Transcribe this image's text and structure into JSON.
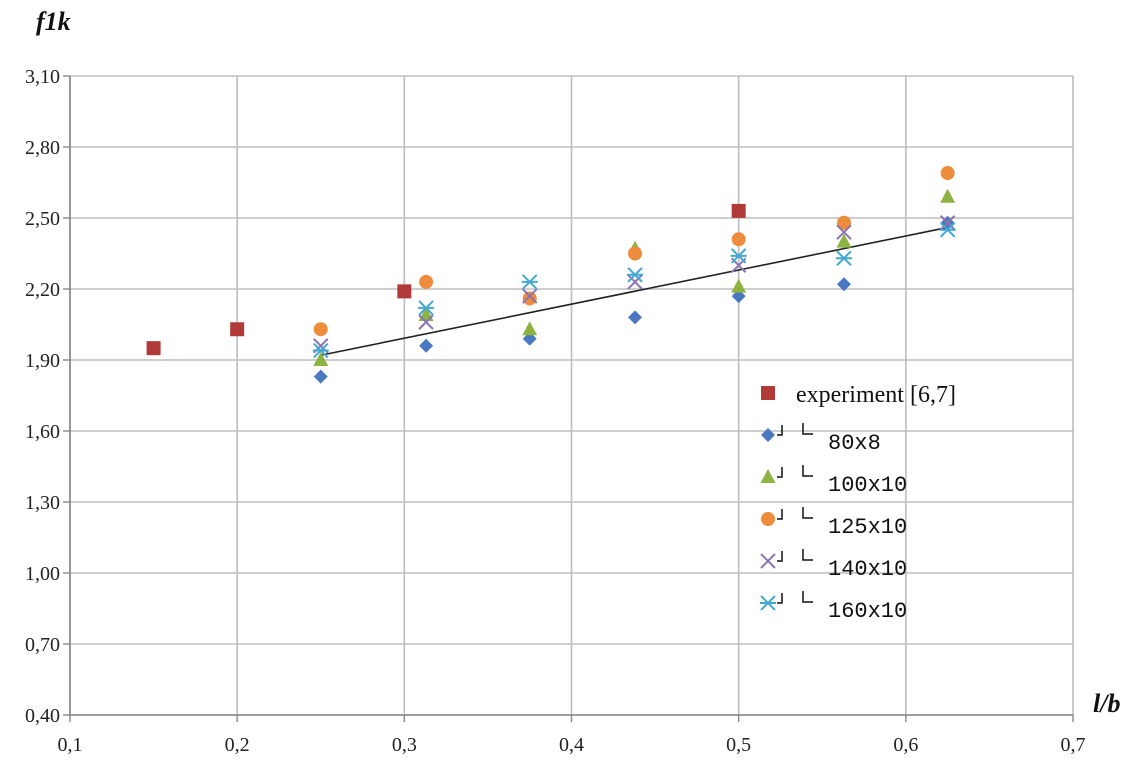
{
  "chart_data": {
    "type": "scatter",
    "ylabel": "f1k",
    "xlabel": "l/b",
    "xlim": [
      0.1,
      0.7
    ],
    "ylim": [
      0.4,
      3.1
    ],
    "x_ticks": [
      "0,1",
      "0,2",
      "0,3",
      "0,4",
      "0,5",
      "0,6",
      "0,7"
    ],
    "y_ticks": [
      "0,40",
      "0,70",
      "1,00",
      "1,30",
      "1,60",
      "1,90",
      "2,20",
      "2,50",
      "2,80",
      "3,10"
    ],
    "grid": true,
    "legend_position": "lower-right",
    "series": [
      {
        "name": "experiment [6,7]",
        "marker": "square",
        "color": "#b03a37",
        "points": [
          [
            0.15,
            1.95
          ],
          [
            0.2,
            2.03
          ],
          [
            0.3,
            2.19
          ],
          [
            0.5,
            2.53
          ]
        ]
      },
      {
        "name": "80x8",
        "marker": "diamond",
        "color": "#4a78c0",
        "points": [
          [
            0.25,
            1.83
          ],
          [
            0.313,
            1.96
          ],
          [
            0.375,
            1.99
          ],
          [
            0.438,
            2.08
          ],
          [
            0.5,
            2.17
          ],
          [
            0.563,
            2.22
          ],
          [
            0.625,
            2.48
          ]
        ]
      },
      {
        "name": "100x10",
        "marker": "triangle",
        "color": "#8db342",
        "points": [
          [
            0.25,
            1.9
          ],
          [
            0.313,
            2.09
          ],
          [
            0.375,
            2.03
          ],
          [
            0.438,
            2.37
          ],
          [
            0.5,
            2.21
          ],
          [
            0.563,
            2.4
          ],
          [
            0.625,
            2.59
          ]
        ]
      },
      {
        "name": "125x10",
        "marker": "circle",
        "color": "#ed8c3a",
        "points": [
          [
            0.25,
            2.03
          ],
          [
            0.313,
            2.23
          ],
          [
            0.375,
            2.16
          ],
          [
            0.438,
            2.35
          ],
          [
            0.5,
            2.41
          ],
          [
            0.563,
            2.48
          ],
          [
            0.625,
            2.69
          ]
        ]
      },
      {
        "name": "140x10",
        "marker": "x",
        "color": "#8c73b3",
        "points": [
          [
            0.25,
            1.96
          ],
          [
            0.313,
            2.06
          ],
          [
            0.375,
            2.17
          ],
          [
            0.438,
            2.23
          ],
          [
            0.5,
            2.3
          ],
          [
            0.563,
            2.44
          ],
          [
            0.625,
            2.48
          ]
        ]
      },
      {
        "name": "160x10",
        "marker": "asterisk",
        "color": "#43a9cf",
        "points": [
          [
            0.25,
            1.94
          ],
          [
            0.313,
            2.12
          ],
          [
            0.375,
            2.23
          ],
          [
            0.438,
            2.26
          ],
          [
            0.5,
            2.34
          ],
          [
            0.563,
            2.33
          ],
          [
            0.625,
            2.45
          ]
        ]
      }
    ],
    "trendline": {
      "color": "#222222",
      "points": [
        [
          0.25,
          1.92
        ],
        [
          0.625,
          2.46
        ]
      ]
    }
  }
}
